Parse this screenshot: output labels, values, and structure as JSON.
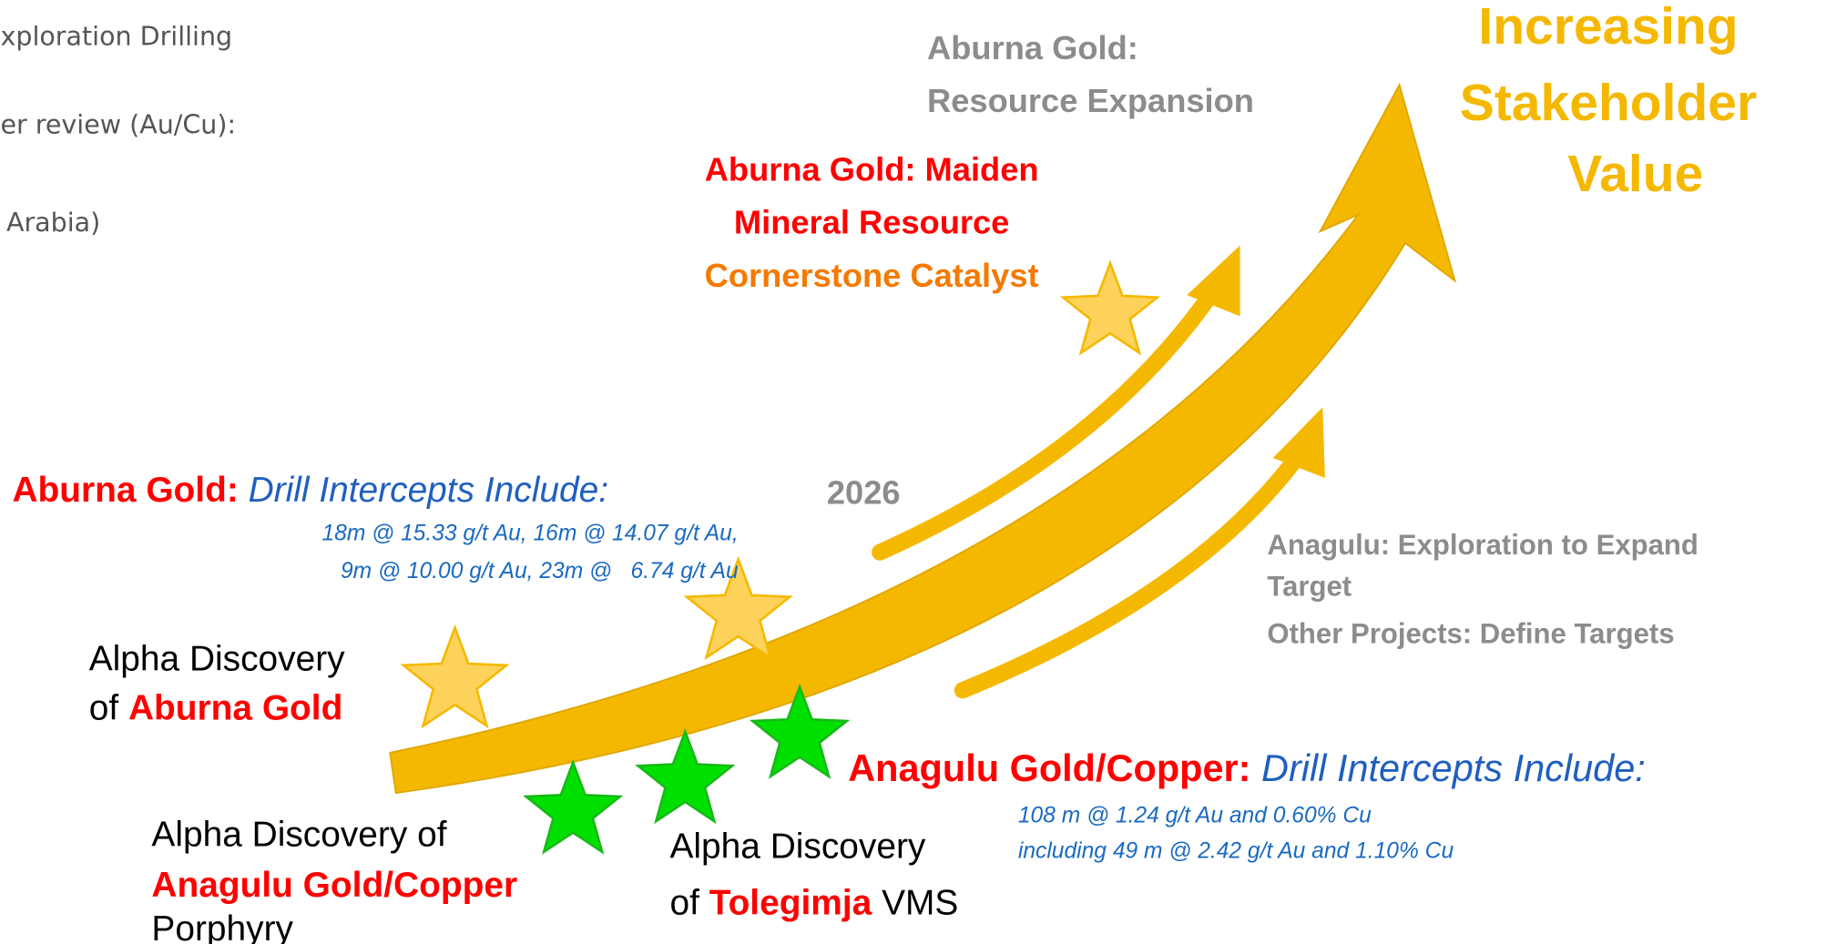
{
  "left_cut": [
    "xploration Drilling",
    "er review (Au/Cu):",
    "Arabia)"
  ],
  "expansion": [
    "Aburna Gold:",
    "Resource Expansion"
  ],
  "goal": [
    "Increasing",
    "Stakeholder",
    "Value"
  ],
  "maiden": [
    "Aburna Gold: Maiden",
    "Mineral Resource",
    "Cornerstone Catalyst"
  ],
  "aburna_drill": {
    "name": "Aburna Gold:",
    "heading": "Drill Intercepts Include:",
    "lines": [
      "18m @ 15.33 g/t Au, 16m @ 14.07 g/t Au,",
      "9m @ 10.00 g/t Au, 23m @   6.74 g/t Au"
    ]
  },
  "year": "2026",
  "future": [
    "Anagulu: Exploration to Expand",
    "Target",
    "Other Projects: Define Targets"
  ],
  "aburna_discovery": {
    "line1": "Alpha Discovery",
    "pre": "of ",
    "name": "Aburna Gold"
  },
  "anagulu_drill": {
    "name": "Anagulu Gold/Copper:",
    "heading": "Drill Intercepts Include:",
    "lines": [
      "108 m @ 1.24 g/t Au and 0.60% Cu",
      "including 49 m @ 2.42 g/t Au and 1.10% Cu"
    ]
  },
  "anagulu_discovery": {
    "line1": "Alpha Discovery of",
    "name": "Anagulu Gold/Copper",
    "line3": "Porphyry"
  },
  "tolegimja_discovery": {
    "line1": "Alpha Discovery",
    "pre": "of ",
    "name": "Tolegimja",
    "post": " VMS"
  }
}
